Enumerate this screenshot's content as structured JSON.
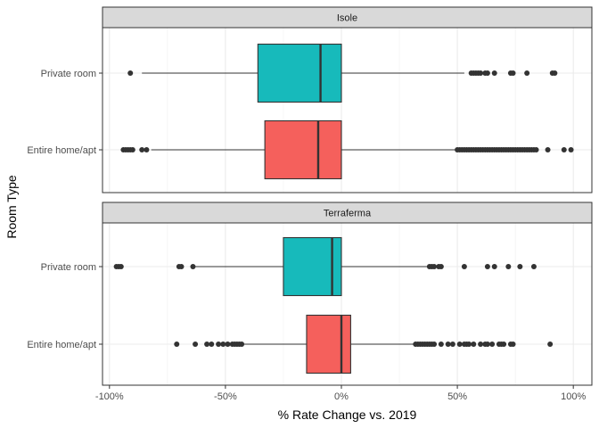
{
  "chart_data": {
    "type": "boxplot",
    "title": "",
    "xlabel": "% Rate Change vs. 2019",
    "ylabel": "Room Type",
    "xlim": [
      -103,
      108
    ],
    "x_ticks": [
      -100,
      -50,
      0,
      50,
      100
    ],
    "x_tick_labels": [
      "-100%",
      "-50%",
      "0%",
      "50%",
      "100%"
    ],
    "categories": [
      "Private room",
      "Entire home/apt"
    ],
    "category_colors": {
      "Private room": "#17BABB",
      "Entire home/apt": "#F5605C"
    },
    "grid": true,
    "legend": "none",
    "facets": [
      {
        "name": "Isole",
        "boxes": [
          {
            "category": "Private room",
            "whisker_low": -86,
            "q1": -36,
            "median": -9,
            "q3": 0,
            "whisker_high": 53,
            "outliers": [
              -91,
              56,
              57,
              58,
              59,
              60,
              62,
              63,
              66,
              73,
              74,
              80,
              91,
              92
            ]
          },
          {
            "category": "Entire home/apt",
            "whisker_low": -82,
            "q1": -33,
            "median": -10,
            "q3": 0,
            "whisker_high": 50,
            "outliers": [
              -94,
              -93,
              -92,
              -91,
              -90,
              -86,
              -84,
              50,
              51,
              52,
              53,
              54,
              55,
              56,
              57,
              58,
              59,
              60,
              61,
              62,
              63,
              64,
              65,
              66,
              67,
              68,
              69,
              70,
              71,
              72,
              73,
              74,
              75,
              76,
              77,
              78,
              79,
              80,
              81,
              82,
              83,
              84,
              89,
              96,
              99
            ]
          }
        ]
      },
      {
        "name": "Terraferma",
        "boxes": [
          {
            "category": "Private room",
            "whisker_low": -63,
            "q1": -25,
            "median": -4,
            "q3": 0,
            "whisker_high": 37,
            "outliers": [
              -97,
              -96,
              -95,
              -70,
              -69,
              -64,
              38,
              39,
              40,
              42,
              43,
              53,
              63,
              66,
              72,
              77,
              83
            ]
          },
          {
            "category": "Entire home/apt",
            "whisker_low": -42,
            "q1": -15,
            "median": 0,
            "q3": 4,
            "whisker_high": 31,
            "outliers": [
              -71,
              -63,
              -58,
              -56,
              -53,
              -51,
              -49,
              -47,
              -46,
              -45,
              -44,
              -43,
              32,
              33,
              34,
              35,
              36,
              37,
              38,
              39,
              40,
              43,
              46,
              48,
              51,
              53,
              54,
              55,
              57,
              60,
              62,
              63,
              65,
              68,
              69,
              70,
              73,
              74,
              90
            ]
          }
        ]
      }
    ]
  }
}
